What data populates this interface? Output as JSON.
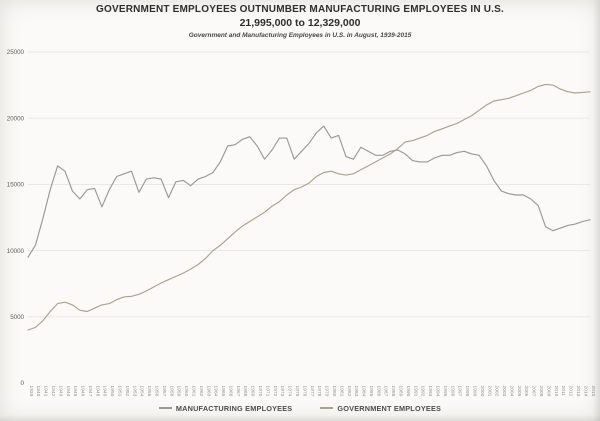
{
  "header": {
    "title": "GOVERNMENT EMPLOYEES OUTNUMBER MANUFACTURING EMPLOYEES IN U.S.",
    "subtitle": "21,995,000 to 12,329,000",
    "caption": "Government and Manufacturing Employees in U.S. in August, 1939-2015"
  },
  "colors": {
    "manufacturing_line": "#98999a",
    "government_line": "#a7a390",
    "grid": "#e7e6e1",
    "title_text": "#2e2e2e",
    "axis_text": "#5d5d5a"
  },
  "legend": {
    "items": [
      {
        "label": "MANUFACTURING EMPLOYEES"
      },
      {
        "label": "GOVERNMENT EMPLOYEES"
      }
    ]
  },
  "chart_data": {
    "type": "line",
    "title": "GOVERNMENT EMPLOYEES OUTNUMBER MANUFACTURING EMPLOYEES IN U.S.",
    "subtitle": "21,995,000 to 12,329,000",
    "caption": "Government and Manufacturing Employees in U.S. in August, 1939-2015",
    "xlabel": "",
    "ylabel": "",
    "ylim": [
      0,
      25000
    ],
    "yticks": [
      0,
      5000,
      10000,
      15000,
      20000,
      25000
    ],
    "grid": true,
    "legend_position": "bottom",
    "x": [
      1939,
      1940,
      1941,
      1942,
      1943,
      1944,
      1945,
      1946,
      1947,
      1948,
      1949,
      1950,
      1951,
      1952,
      1953,
      1954,
      1955,
      1956,
      1957,
      1958,
      1959,
      1960,
      1961,
      1962,
      1963,
      1964,
      1965,
      1966,
      1967,
      1968,
      1969,
      1970,
      1971,
      1972,
      1973,
      1974,
      1975,
      1976,
      1977,
      1978,
      1979,
      1980,
      1981,
      1982,
      1983,
      1984,
      1985,
      1986,
      1987,
      1988,
      1989,
      1990,
      1991,
      1992,
      1993,
      1994,
      1995,
      1996,
      1997,
      1998,
      1999,
      2000,
      2001,
      2002,
      2003,
      2004,
      2005,
      2006,
      2007,
      2008,
      2009,
      2010,
      2011,
      2012,
      2013,
      2014,
      2015
    ],
    "series": [
      {
        "name": "MANUFACTURING EMPLOYEES",
        "color": "#98999a",
        "values": [
          9500,
          10400,
          12400,
          14600,
          16400,
          16000,
          14500,
          13900,
          14600,
          14700,
          13300,
          14600,
          15600,
          15800,
          16000,
          14400,
          15400,
          15500,
          15400,
          14000,
          15200,
          15300,
          14900,
          15400,
          15600,
          15900,
          16700,
          17900,
          18000,
          18400,
          18600,
          17900,
          16900,
          17600,
          18500,
          18500,
          16900,
          17500,
          18100,
          18900,
          19400,
          18500,
          18700,
          17100,
          16900,
          17800,
          17500,
          17200,
          17200,
          17500,
          17600,
          17300,
          16800,
          16700,
          16700,
          17000,
          17200,
          17200,
          17400,
          17500,
          17300,
          17200,
          16400,
          15300,
          14500,
          14300,
          14200,
          14200,
          13900,
          13400,
          11800,
          11500,
          11700,
          11900,
          12000,
          12200,
          12329
        ]
      },
      {
        "name": "GOVERNMENT EMPLOYEES",
        "color": "#a7a390",
        "values": [
          4000,
          4200,
          4700,
          5400,
          6000,
          6100,
          5900,
          5500,
          5400,
          5650,
          5900,
          6000,
          6300,
          6500,
          6550,
          6700,
          6950,
          7250,
          7550,
          7800,
          8050,
          8300,
          8600,
          8950,
          9400,
          10000,
          10400,
          10900,
          11400,
          11850,
          12200,
          12550,
          12900,
          13350,
          13700,
          14200,
          14600,
          14800,
          15100,
          15600,
          15900,
          16000,
          15800,
          15700,
          15800,
          16100,
          16400,
          16700,
          17000,
          17300,
          17700,
          18200,
          18300,
          18500,
          18700,
          19000,
          19200,
          19400,
          19600,
          19900,
          20200,
          20600,
          21000,
          21300,
          21400,
          21500,
          21700,
          21900,
          22100,
          22400,
          22550,
          22500,
          22200,
          22000,
          21900,
          21950,
          21995
        ]
      }
    ],
    "final_values": {
      "government": "21,995,000",
      "manufacturing": "12,329,000"
    }
  }
}
